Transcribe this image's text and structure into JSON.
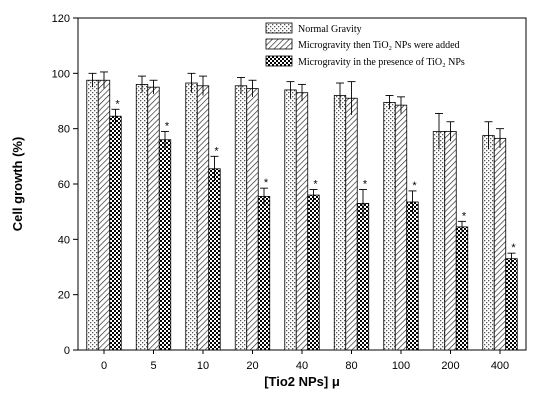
{
  "chart_data": {
    "type": "bar",
    "xlabel": "[Tio2 NPs] μ",
    "ylabel": "Cell growth (%)",
    "ylim": [
      0,
      120
    ],
    "yticks": [
      0,
      20,
      40,
      60,
      80,
      100,
      120
    ],
    "categories": [
      "0",
      "5",
      "10",
      "20",
      "40",
      "80",
      "100",
      "200",
      "400"
    ],
    "legend_position": "top-right",
    "significance_marker": "*",
    "series": [
      {
        "name": "Normal Gravity",
        "pattern": "dots",
        "values": [
          97.5,
          96,
          96.5,
          95.5,
          94,
          92,
          89.5,
          79,
          77.5
        ],
        "errors": [
          2.5,
          3,
          3.5,
          3,
          3,
          4.5,
          2.5,
          6.5,
          5
        ],
        "significant": [
          false,
          false,
          false,
          false,
          false,
          false,
          false,
          false,
          false
        ]
      },
      {
        "name": "Microgravity then TiO₂ NPs were added",
        "pattern": "diagonal",
        "values": [
          97.5,
          95,
          95.5,
          94.5,
          93,
          91,
          88.5,
          79,
          76.5
        ],
        "errors": [
          3,
          2.5,
          3.5,
          3,
          3,
          6,
          3,
          3.5,
          3.5
        ],
        "significant": [
          false,
          false,
          false,
          false,
          false,
          false,
          false,
          false,
          false
        ]
      },
      {
        "name": "Microgravity in the presence of TiO₂ NPs",
        "pattern": "checker",
        "values": [
          84.5,
          76,
          65.5,
          55.5,
          56,
          53,
          53.5,
          44.5,
          33
        ],
        "errors": [
          2.5,
          3,
          4.5,
          3,
          2,
          5,
          4,
          2,
          2
        ],
        "significant": [
          true,
          true,
          true,
          true,
          true,
          true,
          true,
          true,
          true
        ]
      }
    ]
  }
}
